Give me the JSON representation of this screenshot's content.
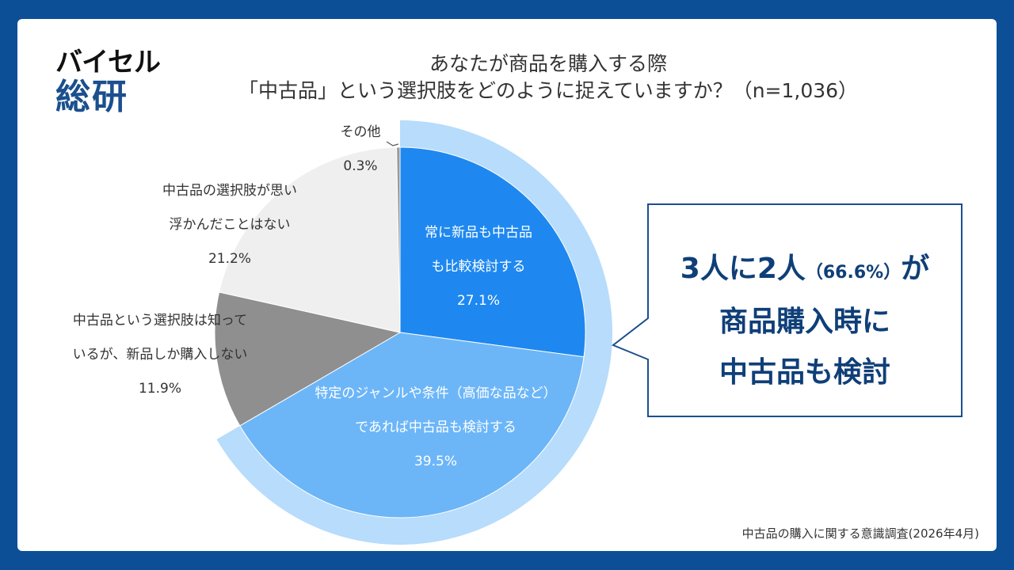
{
  "logo": {
    "top": "バイセル",
    "bottom": "総研"
  },
  "title": {
    "line1": "あなたが商品を購入する際",
    "line2": "「中古品」という選択肢をどのように捉えていますか？（n=1,036）"
  },
  "chart_data": {
    "type": "pie",
    "unit": "%",
    "slices": [
      {
        "label_lines": [
          "常に新品も中古品",
          "も比較検討する"
        ],
        "value": 27.1,
        "value_label": "27.1%",
        "color": "#1e88f0",
        "text_color": "#ffffff"
      },
      {
        "label_lines": [
          "特定のジャンルや条件（高価な品など）",
          "であれば中古品も検討する"
        ],
        "value": 39.5,
        "value_label": "39.5%",
        "color": "#6cb6f8",
        "text_color": "#ffffff"
      },
      {
        "label_lines": [
          "中古品という選択肢は知って",
          "いるが、新品しか購入しない"
        ],
        "value": 11.9,
        "value_label": "11.9%",
        "color": "#8f8f8f",
        "text_color": "#333333"
      },
      {
        "label_lines": [
          "中古品の選択肢が思い",
          "浮かんだことはない"
        ],
        "value": 21.2,
        "value_label": "21.2%",
        "color": "#efefef",
        "text_color": "#333333"
      },
      {
        "label_lines": [
          "その他"
        ],
        "value": 0.3,
        "value_label": "0.3%",
        "color": "#9a9a9a",
        "text_color": "#333333"
      }
    ],
    "highlight_ring": {
      "color": "#b7dcfc",
      "covers_value": 66.6
    }
  },
  "callout": {
    "line1_a": "3人に2人",
    "line1_pct": "（66.6%）",
    "line1_b": "が",
    "line2": "商品購入時に",
    "line3": "中古品も検討"
  },
  "source": "中古品の購入に関する意識調査(2026年4月)"
}
